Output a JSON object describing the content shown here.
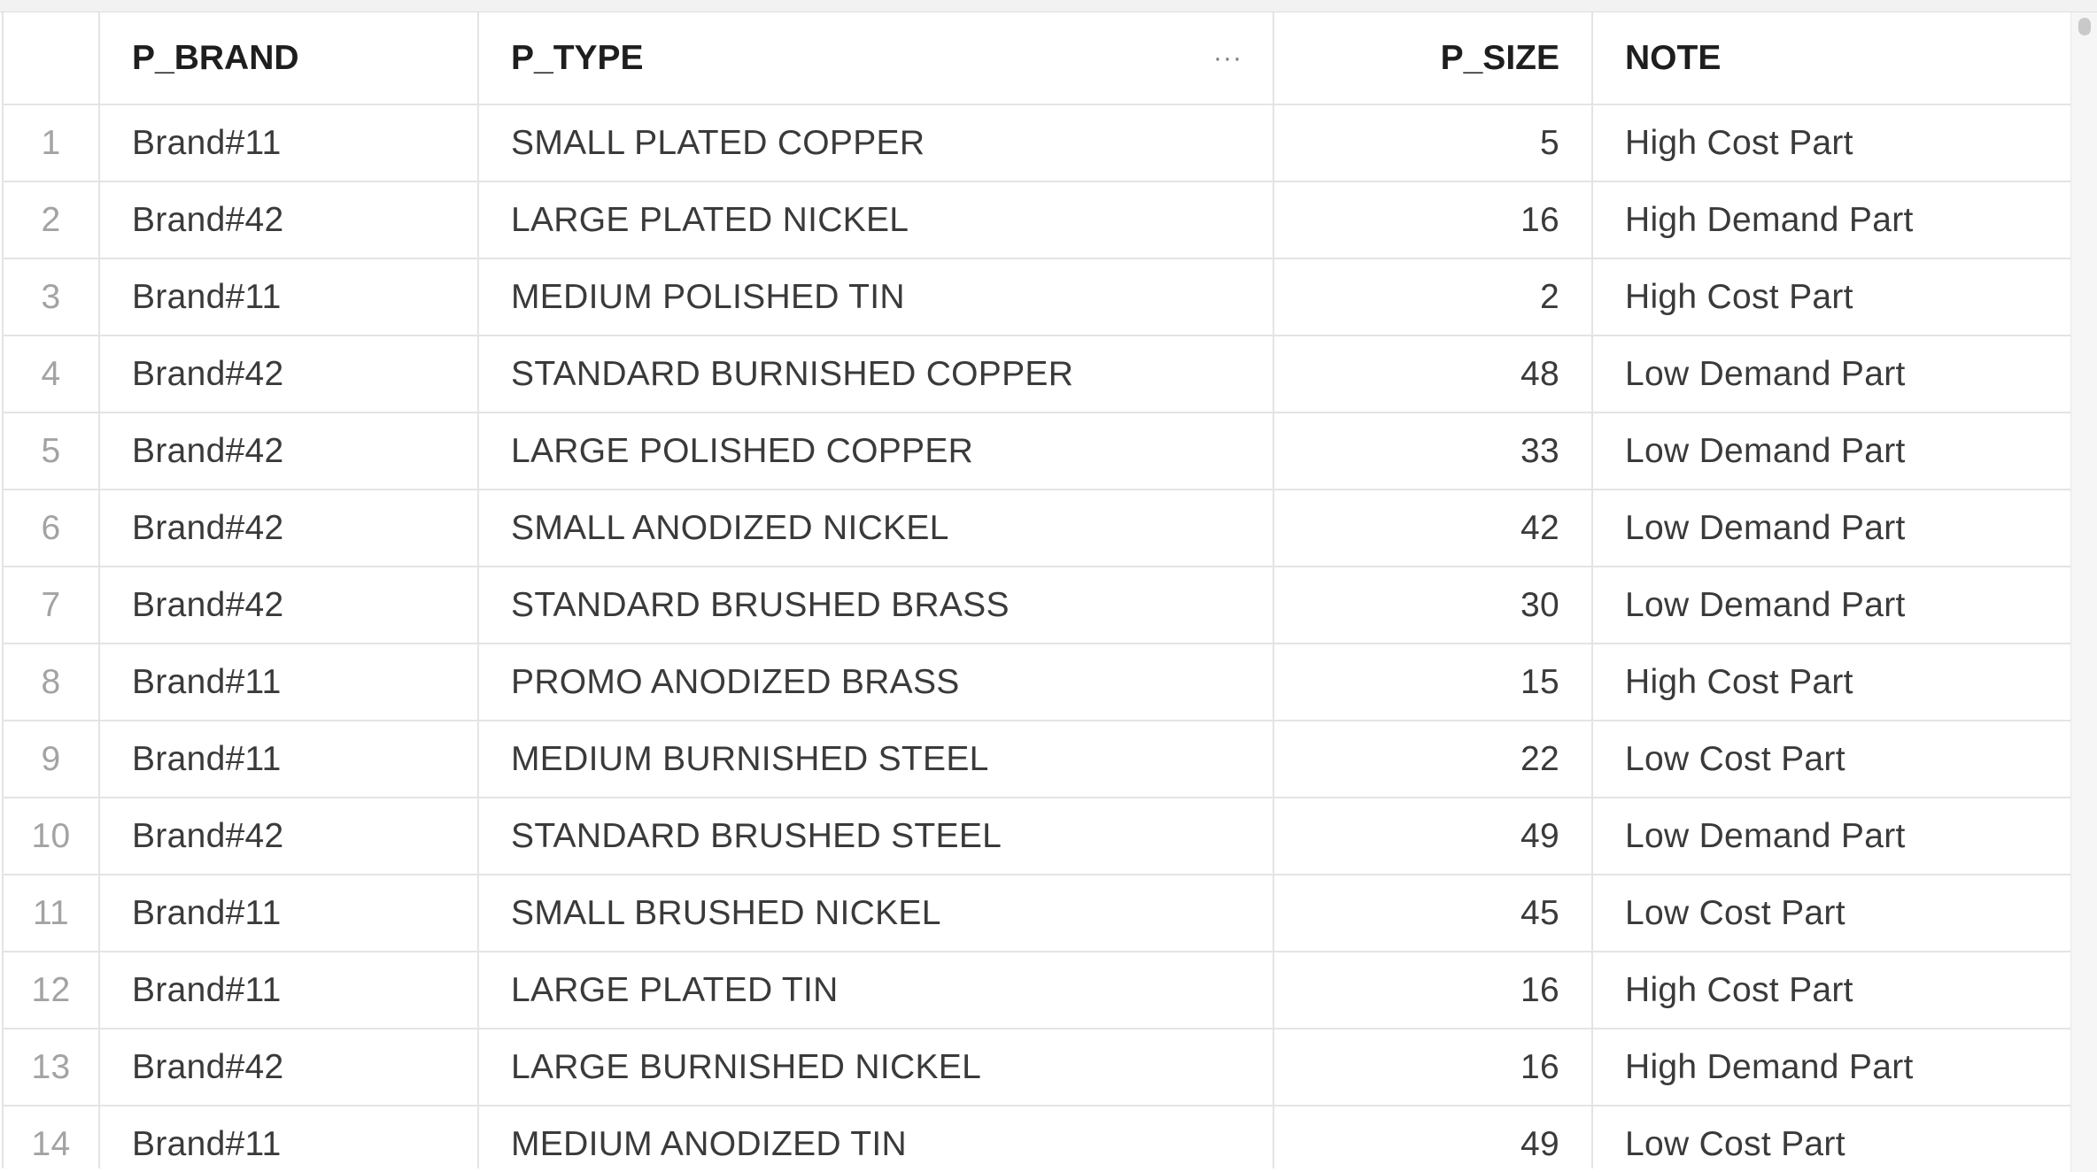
{
  "table": {
    "columns": [
      {
        "key": "index",
        "label": ""
      },
      {
        "key": "p_brand",
        "label": "P_BRAND"
      },
      {
        "key": "p_type",
        "label": "P_TYPE"
      },
      {
        "key": "p_size",
        "label": "P_SIZE"
      },
      {
        "key": "note",
        "label": "NOTE"
      }
    ],
    "column_menu_glyph": "···",
    "rows": [
      {
        "index": "1",
        "p_brand": "Brand#11",
        "p_type": "SMALL PLATED COPPER",
        "p_size": "5",
        "note": "High Cost Part"
      },
      {
        "index": "2",
        "p_brand": "Brand#42",
        "p_type": "LARGE PLATED NICKEL",
        "p_size": "16",
        "note": "High Demand Part"
      },
      {
        "index": "3",
        "p_brand": "Brand#11",
        "p_type": "MEDIUM POLISHED TIN",
        "p_size": "2",
        "note": "High Cost Part"
      },
      {
        "index": "4",
        "p_brand": "Brand#42",
        "p_type": "STANDARD BURNISHED COPPER",
        "p_size": "48",
        "note": "Low Demand Part"
      },
      {
        "index": "5",
        "p_brand": "Brand#42",
        "p_type": "LARGE POLISHED COPPER",
        "p_size": "33",
        "note": "Low Demand Part"
      },
      {
        "index": "6",
        "p_brand": "Brand#42",
        "p_type": "SMALL ANODIZED NICKEL",
        "p_size": "42",
        "note": "Low Demand Part"
      },
      {
        "index": "7",
        "p_brand": "Brand#42",
        "p_type": "STANDARD BRUSHED BRASS",
        "p_size": "30",
        "note": "Low Demand Part"
      },
      {
        "index": "8",
        "p_brand": "Brand#11",
        "p_type": "PROMO ANODIZED BRASS",
        "p_size": "15",
        "note": "High Cost Part"
      },
      {
        "index": "9",
        "p_brand": "Brand#11",
        "p_type": "MEDIUM BURNISHED STEEL",
        "p_size": "22",
        "note": "Low Cost Part"
      },
      {
        "index": "10",
        "p_brand": "Brand#42",
        "p_type": "STANDARD BRUSHED STEEL",
        "p_size": "49",
        "note": "Low Demand Part"
      },
      {
        "index": "11",
        "p_brand": "Brand#11",
        "p_type": "SMALL BRUSHED NICKEL",
        "p_size": "45",
        "note": "Low Cost Part"
      },
      {
        "index": "12",
        "p_brand": "Brand#11",
        "p_type": "LARGE PLATED TIN",
        "p_size": "16",
        "note": "High Cost Part"
      },
      {
        "index": "13",
        "p_brand": "Brand#42",
        "p_type": "LARGE BURNISHED NICKEL",
        "p_size": "16",
        "note": "High Demand Part"
      },
      {
        "index": "14",
        "p_brand": "Brand#11",
        "p_type": "MEDIUM ANODIZED TIN",
        "p_size": "49",
        "note": "Low Cost Part"
      }
    ]
  },
  "colors": {
    "grid_line": "#e4e4e4",
    "header_text": "#1e1e1e",
    "cell_text": "#3a3a3a",
    "row_index_text": "#a3a3a3"
  }
}
